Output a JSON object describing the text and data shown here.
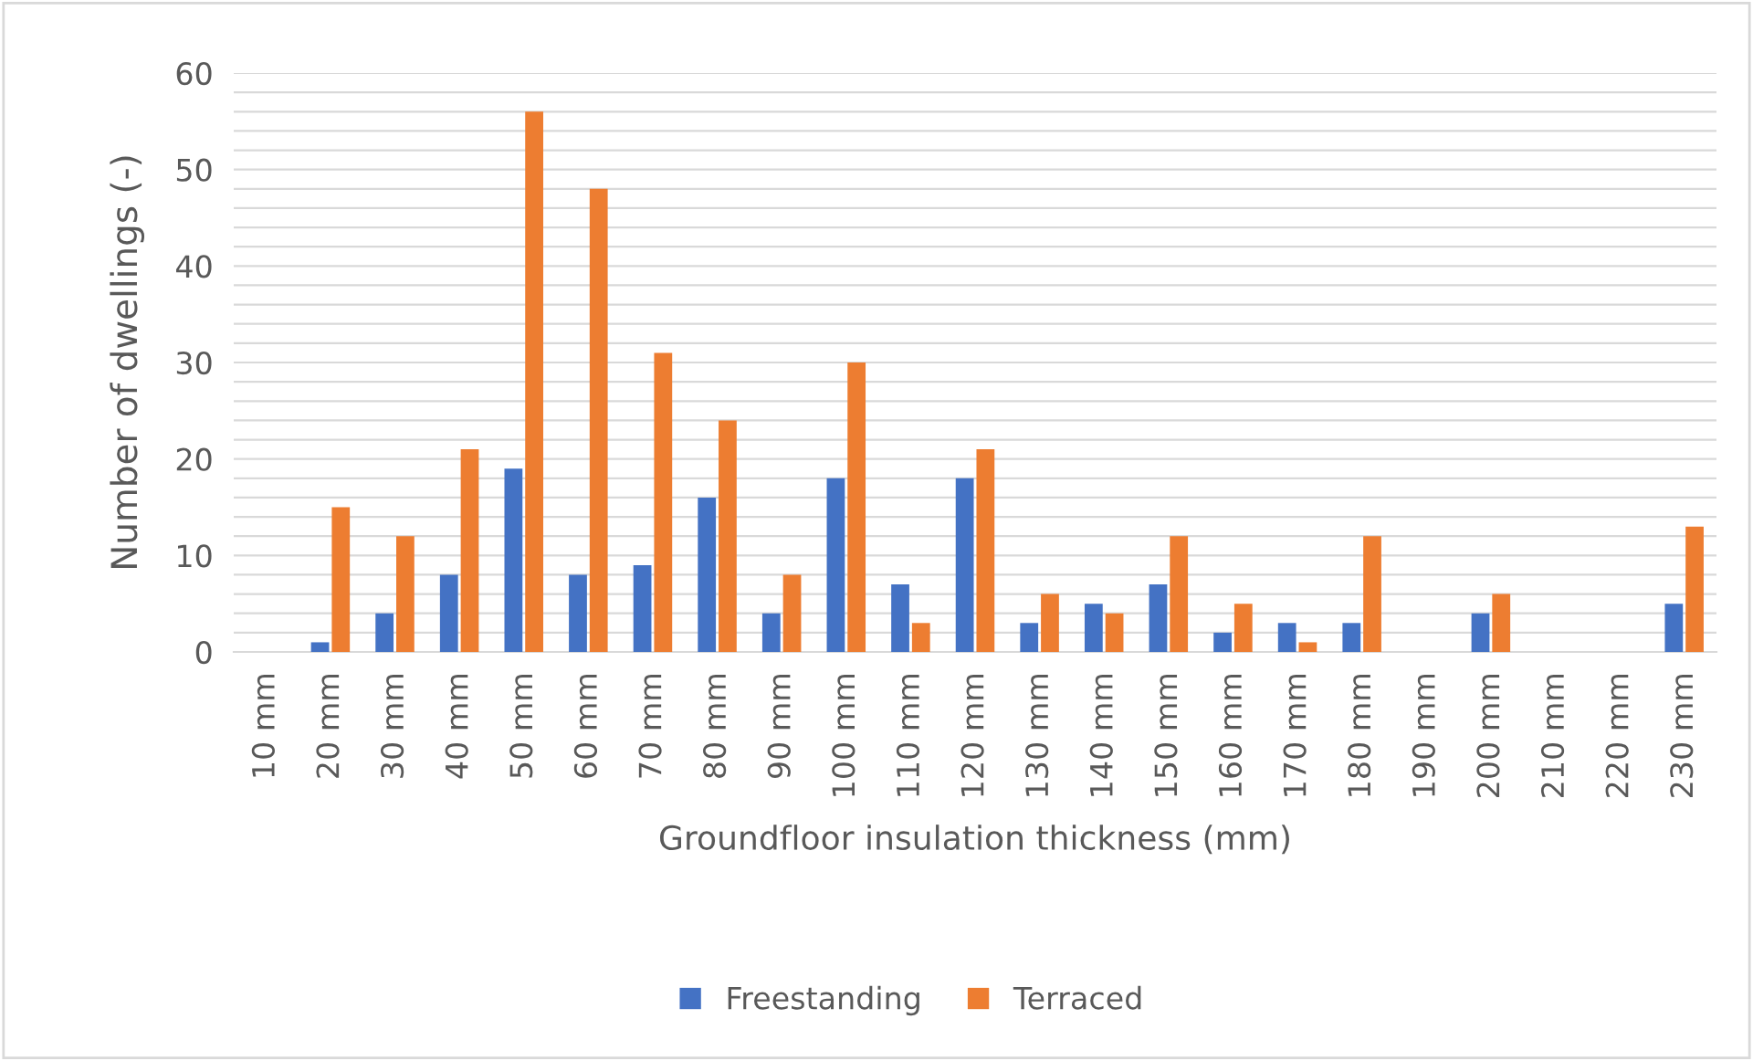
{
  "chart_data": {
    "type": "bar",
    "xlabel": "Groundfloor insulation thickness (mm)",
    "ylabel": "Number of dwellings (-)",
    "categories": [
      "10 mm",
      "20 mm",
      "30 mm",
      "40 mm",
      "50 mm",
      "60 mm",
      "70 mm",
      "80 mm",
      "90 mm",
      "100 mm",
      "110 mm",
      "120 mm",
      "130 mm",
      "140 mm",
      "150 mm",
      "160 mm",
      "170 mm",
      "180 mm",
      "190 mm",
      "200 mm",
      "210 mm",
      "220 mm",
      "230 mm"
    ],
    "series": [
      {
        "name": "Freestanding",
        "color": "#4472c4",
        "values": [
          0,
          1,
          4,
          8,
          19,
          8,
          9,
          16,
          4,
          18,
          7,
          18,
          3,
          5,
          7,
          2,
          3,
          3,
          0,
          4,
          0,
          0,
          5
        ]
      },
      {
        "name": "Terraced",
        "color": "#ed7d31",
        "values": [
          0,
          15,
          12,
          21,
          56,
          48,
          31,
          24,
          8,
          30,
          3,
          21,
          6,
          4,
          12,
          5,
          1,
          12,
          0,
          6,
          0,
          0,
          13
        ]
      }
    ],
    "ylim": [
      0,
      60
    ],
    "yticks": [
      0,
      {
        "value": 2,
        "label": null
      },
      {
        "value": 4,
        "label": null
      },
      {
        "value": 6,
        "label": null
      },
      {
        "value": 8,
        "label": null
      },
      10,
      {
        "value": 12,
        "label": null
      },
      {
        "value": 14,
        "label": null
      },
      {
        "value": 16,
        "label": null
      },
      {
        "value": 18,
        "label": null
      },
      20,
      {
        "value": 22,
        "label": null
      },
      {
        "value": 24,
        "label": null
      },
      {
        "value": 26,
        "label": null
      },
      {
        "value": 28,
        "label": null
      },
      30,
      {
        "value": 32,
        "label": null
      },
      {
        "value": 34,
        "label": null
      },
      {
        "value": 36,
        "label": null
      },
      {
        "value": 38,
        "label": null
      },
      40,
      {
        "value": 42,
        "label": null
      },
      {
        "value": 44,
        "label": null
      },
      {
        "value": 46,
        "label": null
      },
      {
        "value": 48,
        "label": null
      },
      50,
      {
        "value": 52,
        "label": null
      },
      {
        "value": 54,
        "label": null
      },
      {
        "value": 56,
        "label": null
      },
      {
        "value": 58,
        "label": null
      },
      60
    ],
    "grid": "y",
    "legend": "bottom"
  }
}
